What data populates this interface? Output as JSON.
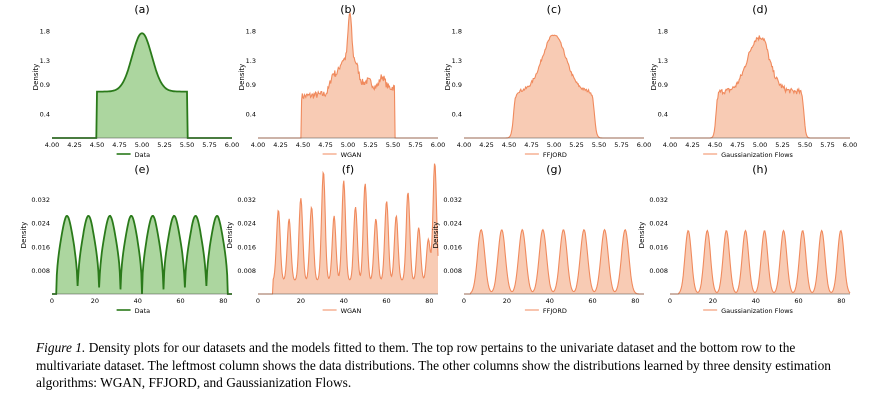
{
  "panels": [
    {
      "letter": "(a)",
      "legend": "Data",
      "style": "green",
      "shape": "uniform"
    },
    {
      "letter": "(b)",
      "legend": "WGAN",
      "style": "salmon",
      "shape": "uni-wgan"
    },
    {
      "letter": "(c)",
      "legend": "FFJORD",
      "style": "salmon",
      "shape": "uni-ffjord"
    },
    {
      "letter": "(d)",
      "legend": "Gaussianization Flows",
      "style": "salmon",
      "shape": "uni-gf"
    },
    {
      "letter": "(e)",
      "legend": "Data",
      "style": "green",
      "shape": "multi-data"
    },
    {
      "letter": "(f)",
      "legend": "WGAN",
      "style": "salmon",
      "shape": "multi-wgan"
    },
    {
      "letter": "(g)",
      "legend": "FFJORD",
      "style": "salmon",
      "shape": "multi-ffjord"
    },
    {
      "letter": "(h)",
      "legend": "Gaussianization Flows",
      "style": "salmon",
      "shape": "multi-gf"
    }
  ],
  "top_axis": {
    "ylabel": "Density",
    "yticks": [
      "0.4",
      "0.9",
      "1.3",
      "1.8"
    ],
    "ytick_values": [
      0.4,
      0.9,
      1.3,
      1.8
    ],
    "ylim": [
      0,
      2.05
    ],
    "xticks": [
      "4.00",
      "4.25",
      "4.50",
      "4.75",
      "5.00",
      "5.25",
      "5.50",
      "5.75",
      "6.00"
    ],
    "xtick_values": [
      4.0,
      4.25,
      4.5,
      4.75,
      5.0,
      5.25,
      5.5,
      5.75,
      6.0
    ],
    "xlim": [
      4.0,
      6.0
    ]
  },
  "bottom_axis": {
    "ylabel": "Density",
    "yticks": [
      "0.008",
      "0.016",
      "0.024",
      "0.032"
    ],
    "ytick_values": [
      0.008,
      0.016,
      0.024,
      0.032
    ],
    "ylim": [
      0,
      0.04
    ],
    "xticks": [
      "0",
      "20",
      "40",
      "60",
      "80"
    ],
    "xtick_values": [
      0,
      20,
      40,
      60,
      80
    ],
    "xlim": [
      0,
      84
    ]
  },
  "colors": {
    "green_line": "#2a7a1a",
    "green_fill": "#a8d49a",
    "salmon_line": "#f08a5d",
    "salmon_fill": "#f8c8b0"
  },
  "caption": {
    "label": "Figure 1.",
    "text": " Density plots for our datasets and the models fitted to them. The top row pertains to the univariate dataset and the bottom row to the multivariate dataset. The leftmost column shows the data distributions. The other columns show the distributions learned by three density estimation algorithms: WGAN, FFJORD, and Gaussianization Flows."
  }
}
